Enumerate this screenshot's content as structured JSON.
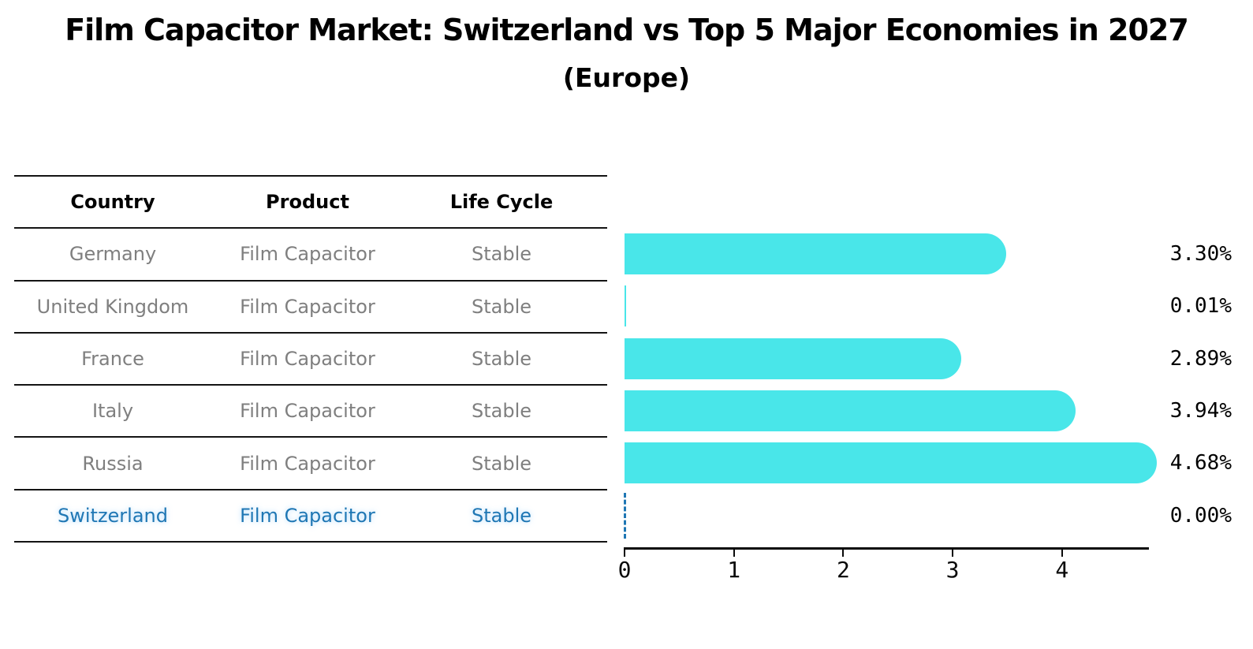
{
  "title": "Film Capacitor Market: Switzerland vs Top 5 Major Economies in 2027",
  "subtitle": "(Europe)",
  "table": {
    "headers": [
      "Country",
      "Product",
      "Life Cycle"
    ],
    "rows": [
      {
        "country": "Germany",
        "product": "Film Capacitor",
        "life_cycle": "Stable",
        "highlight": false
      },
      {
        "country": "United Kingdom",
        "product": "Film Capacitor",
        "life_cycle": "Stable",
        "highlight": false
      },
      {
        "country": "France",
        "product": "Film Capacitor",
        "life_cycle": "Stable",
        "highlight": false
      },
      {
        "country": "Italy",
        "product": "Film Capacitor",
        "life_cycle": "Stable",
        "highlight": false
      },
      {
        "country": "Russia",
        "product": "Film Capacitor",
        "life_cycle": "Stable",
        "highlight": true
      },
      {
        "country": "Switzerland",
        "product": "Film Capacitor",
        "life_cycle": "Stable",
        "highlight": false
      }
    ]
  },
  "chart_data": {
    "type": "bar",
    "orientation": "horizontal",
    "title": "Film Capacitor Market: Switzerland vs Top 5 Major Economies in 2027 (Europe)",
    "categories": [
      "Germany",
      "United Kingdom",
      "France",
      "Italy",
      "Russia",
      "Switzerland"
    ],
    "values": [
      3.3,
      0.01,
      2.89,
      3.94,
      4.68,
      0.0
    ],
    "value_labels": [
      "3.30%",
      "0.01%",
      "2.89%",
      "3.94%",
      "4.68%",
      "0.00%"
    ],
    "xticks": [
      0,
      1,
      2,
      3,
      4
    ],
    "xlim": [
      0,
      4.8
    ],
    "grid": false,
    "legend": "none",
    "bar_color": "#49e6e9",
    "highlight_color": "#1f77b4",
    "highlight_index": 5
  },
  "colors": {
    "background": "#ffffff",
    "bar": "#49e6e9",
    "highlight_blue": "#1f77b4",
    "table_text_gray": "#7f7f7f",
    "line_black": "#141414"
  }
}
